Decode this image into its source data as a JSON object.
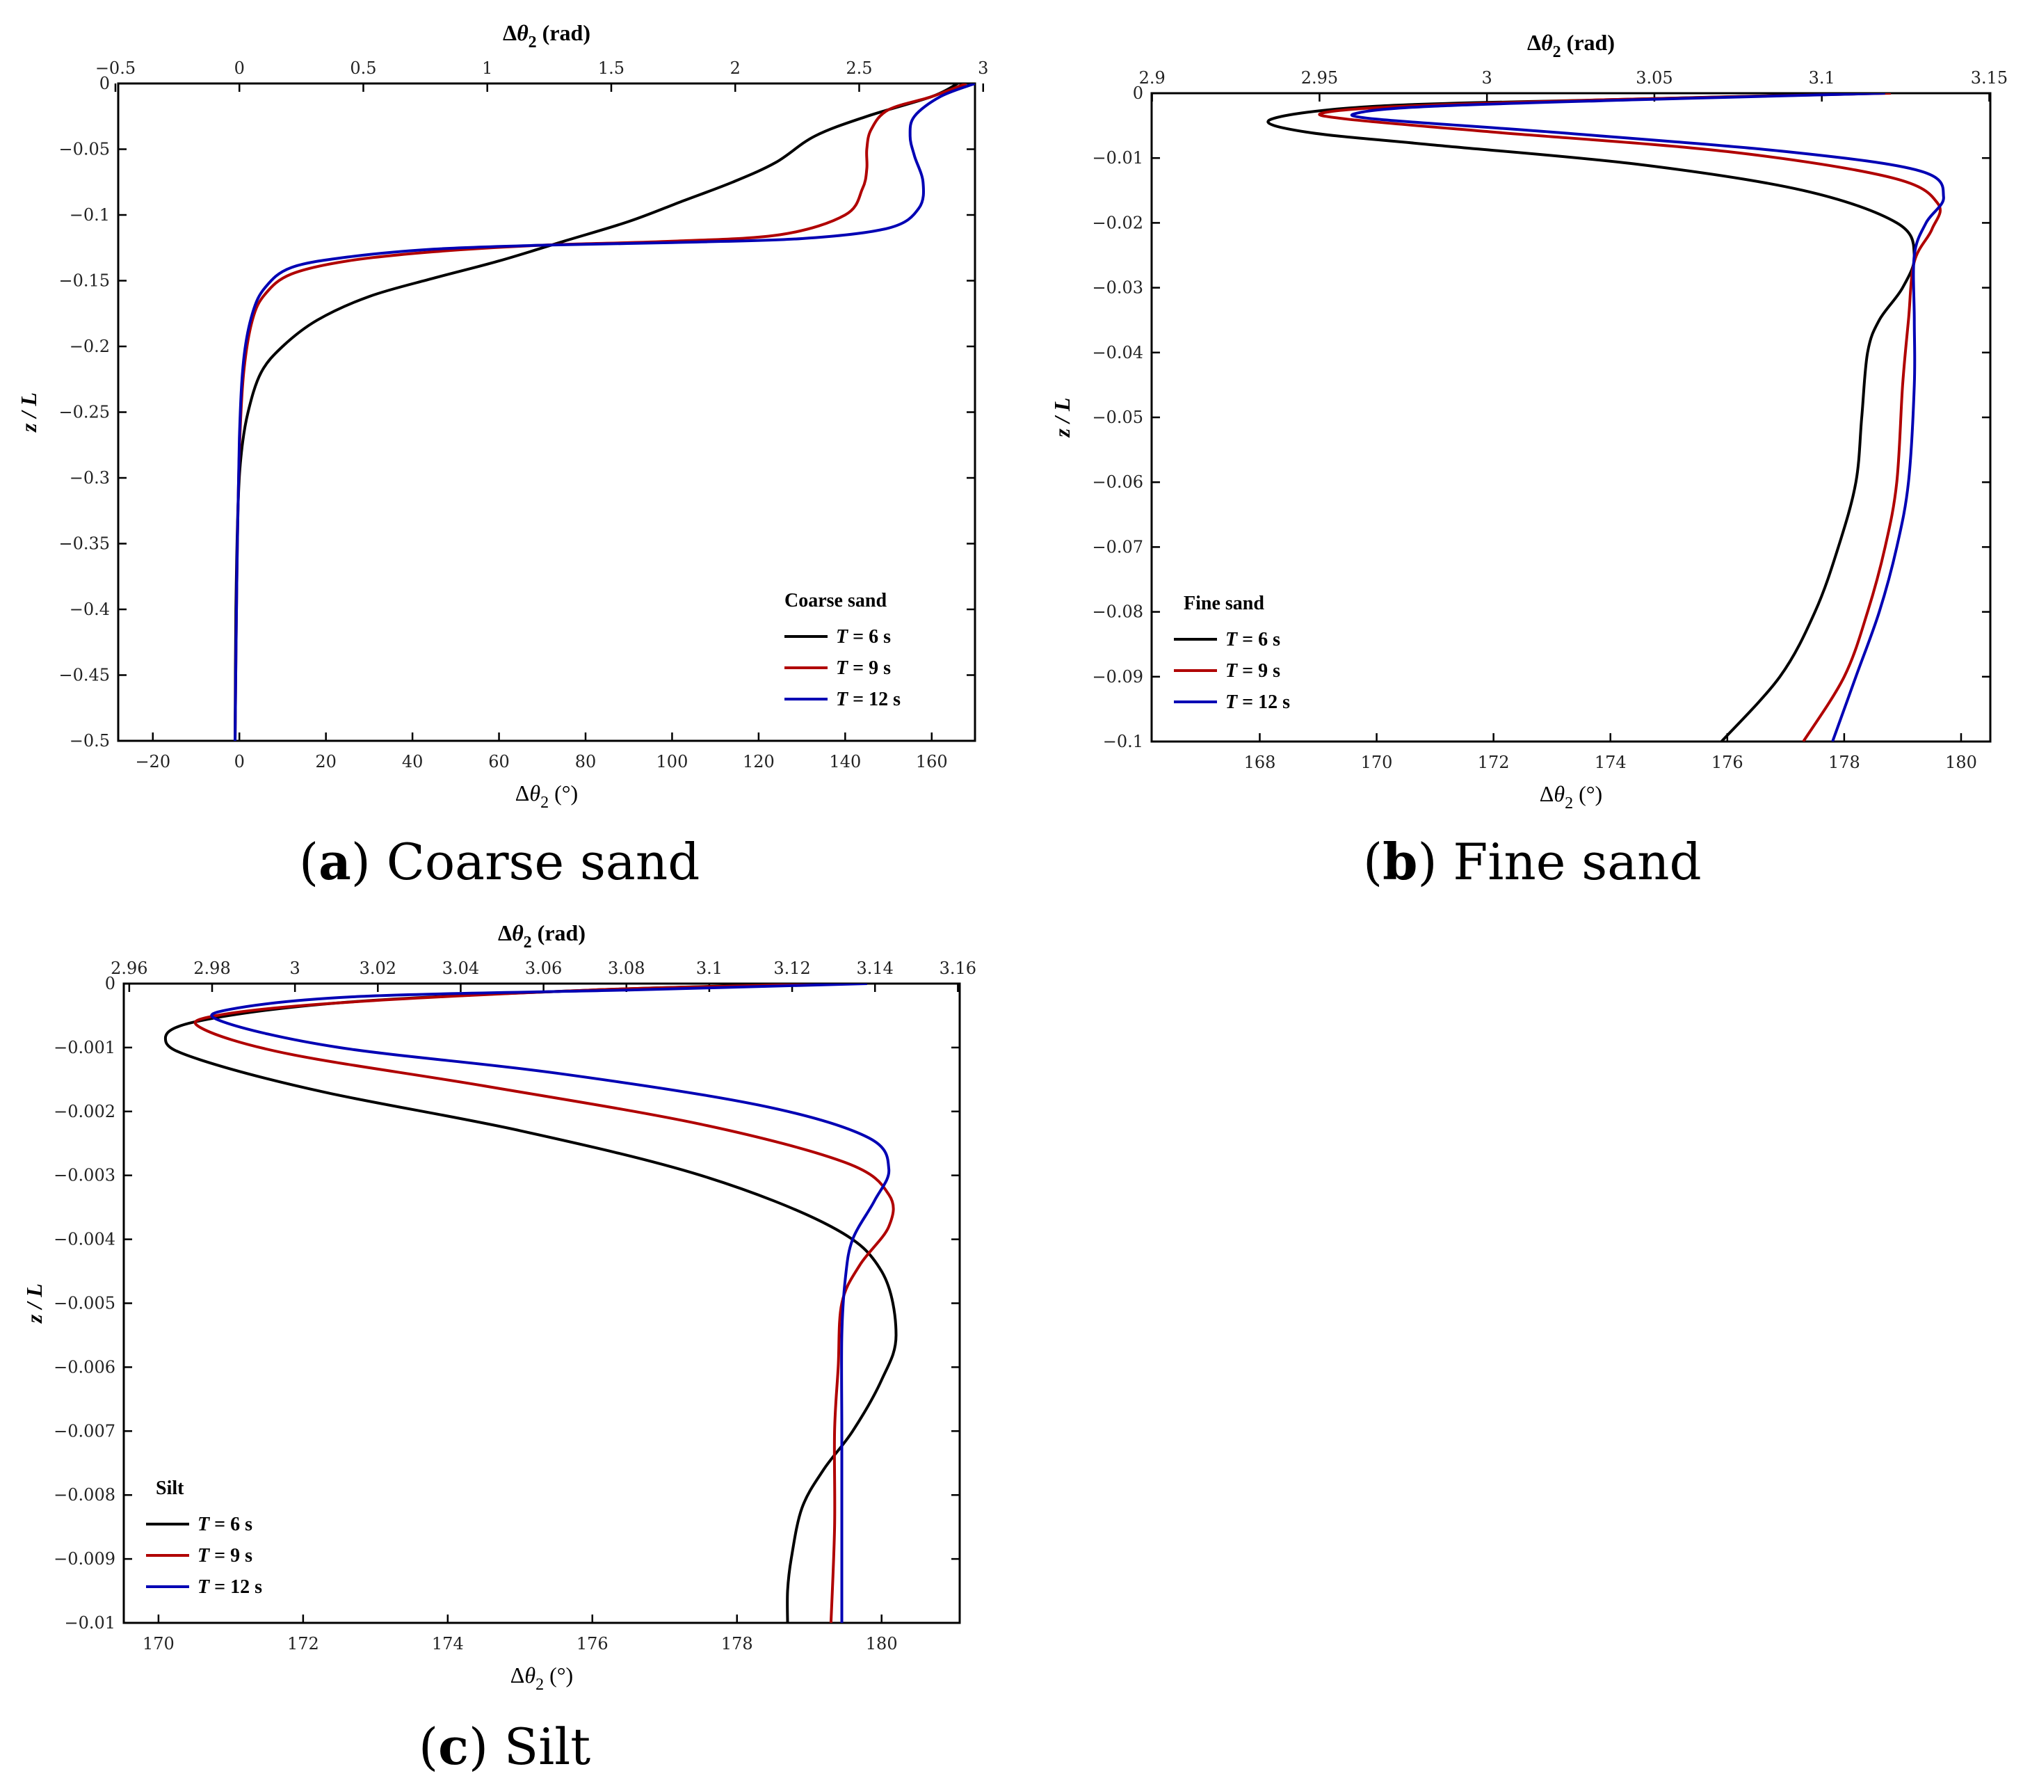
{
  "colors": {
    "T6": "#000000",
    "T9": "#b00000",
    "T12": "#0000b4"
  },
  "captions": [
    {
      "letter": "a",
      "text": "Coarse sand"
    },
    {
      "letter": "b",
      "text": "Fine sand"
    },
    {
      "letter": "c",
      "text": "Silt"
    }
  ],
  "chart_data": [
    {
      "type": "line",
      "panel": "a",
      "title": "Coarse sand",
      "xlabel": "Δθ2 (°)",
      "x2label": "Δθ2 (rad)",
      "ylabel": "z / L",
      "xlim": [
        -28,
        170
      ],
      "ylim": [
        -0.5,
        0
      ],
      "xticks": [
        -20,
        0,
        20,
        40,
        60,
        80,
        100,
        120,
        140,
        160
      ],
      "x2ticks": [
        -0.5,
        0,
        0.5,
        1,
        1.5,
        2,
        2.5,
        3
      ],
      "x2tick_labels": [
        "−0.5",
        "0",
        "0.5",
        "1",
        "1.5",
        "2",
        "2.5",
        "3"
      ],
      "yticks": [
        0,
        -0.05,
        -0.1,
        -0.15,
        -0.2,
        -0.25,
        -0.3,
        -0.35,
        -0.4,
        -0.45,
        -0.5
      ],
      "ytick_labels": [
        "0",
        "−0.05",
        "−0.1",
        "−0.15",
        "−0.2",
        "−0.25",
        "−0.3",
        "−0.35",
        "−0.4",
        "−0.45",
        "−0.5"
      ],
      "legend_title": "Coarse sand",
      "legend_position": "bottom-right",
      "series": [
        {
          "name": "T = 6 s",
          "key": "T6",
          "x": [
            166,
            160,
            145,
            133,
            124,
            114,
            102,
            90,
            75,
            60,
            45,
            30,
            18,
            10,
            5,
            2,
            0.5,
            -0.3,
            -0.8,
            -1
          ],
          "y": [
            0,
            -0.01,
            -0.025,
            -0.04,
            -0.06,
            -0.075,
            -0.09,
            -0.105,
            -0.12,
            -0.135,
            -0.148,
            -0.162,
            -0.18,
            -0.2,
            -0.22,
            -0.25,
            -0.28,
            -0.32,
            -0.4,
            -0.5
          ]
        },
        {
          "name": "T = 9 s",
          "key": "T9",
          "x": [
            168,
            160,
            150,
            146,
            145,
            145,
            144,
            140,
            125,
            100,
            70,
            45,
            25,
            12,
            6,
            3,
            1,
            0,
            -0.6,
            -1
          ],
          "y": [
            0,
            -0.01,
            -0.02,
            -0.035,
            -0.05,
            -0.065,
            -0.08,
            -0.1,
            -0.115,
            -0.12,
            -0.123,
            -0.128,
            -0.135,
            -0.145,
            -0.16,
            -0.18,
            -0.22,
            -0.28,
            -0.38,
            -0.5
          ]
        },
        {
          "name": "T = 12 s",
          "key": "T12",
          "x": [
            170,
            162,
            156,
            155,
            156,
            158,
            157,
            150,
            130,
            100,
            70,
            45,
            25,
            12,
            6,
            3,
            1,
            0,
            -0.6,
            -1
          ],
          "y": [
            0,
            -0.01,
            -0.025,
            -0.04,
            -0.055,
            -0.075,
            -0.095,
            -0.11,
            -0.118,
            -0.121,
            -0.123,
            -0.126,
            -0.132,
            -0.14,
            -0.155,
            -0.175,
            -0.21,
            -0.27,
            -0.38,
            -0.5
          ]
        }
      ]
    },
    {
      "type": "line",
      "panel": "b",
      "title": "Fine sand",
      "xlabel": "Δθ2 (°)",
      "x2label": "Δθ2 (rad)",
      "ylabel": "z / L",
      "xlim": [
        166.15,
        180.5
      ],
      "ylim": [
        -0.1,
        0
      ],
      "xticks": [
        168,
        170,
        172,
        174,
        176,
        178,
        180
      ],
      "x2ticks": [
        2.9,
        2.95,
        3,
        3.05,
        3.1,
        3.15
      ],
      "x2tick_labels": [
        "2.9",
        "2.95",
        "3",
        "3.05",
        "3.1",
        "3.15"
      ],
      "yticks": [
        0,
        -0.01,
        -0.02,
        -0.03,
        -0.04,
        -0.05,
        -0.06,
        -0.07,
        -0.08,
        -0.09,
        -0.1
      ],
      "ytick_labels": [
        "0",
        "−0.01",
        "−0.02",
        "−0.03",
        "−0.04",
        "−0.05",
        "−0.06",
        "−0.07",
        "−0.08",
        "−0.09",
        "−0.1"
      ],
      "legend_title": "Fine sand",
      "legend_position": "bottom-left",
      "series": [
        {
          "name": "T = 6 s",
          "key": "T6",
          "x": [
            178.5,
            174,
            170,
            168.2,
            168.8,
            171,
            174.5,
            177.3,
            178.9,
            179.2,
            179,
            178.6,
            178.4,
            178.3,
            178.2,
            177.9,
            177.5,
            176.9,
            175.9
          ],
          "y": [
            0,
            -0.001,
            -0.002,
            -0.004,
            -0.006,
            -0.008,
            -0.011,
            -0.015,
            -0.02,
            -0.025,
            -0.03,
            -0.035,
            -0.04,
            -0.05,
            -0.06,
            -0.07,
            -0.08,
            -0.09,
            -0.1
          ]
        },
        {
          "name": "T = 9 s",
          "key": "T9",
          "x": [
            178.8,
            174,
            170.5,
            169.1,
            169.5,
            172,
            176,
            178.8,
            179.6,
            179.5,
            179.2,
            179.1,
            179,
            178.9,
            178.7,
            178.4,
            178,
            177.3
          ],
          "y": [
            0,
            -0.001,
            -0.002,
            -0.003,
            -0.004,
            -0.006,
            -0.009,
            -0.013,
            -0.017,
            -0.021,
            -0.026,
            -0.035,
            -0.045,
            -0.06,
            -0.07,
            -0.08,
            -0.09,
            -0.1
          ]
        },
        {
          "name": "T = 12 s",
          "key": "T12",
          "x": [
            178.7,
            174.5,
            171,
            169.7,
            170,
            173,
            177,
            179.3,
            179.7,
            179.4,
            179.2,
            179.2,
            179.2,
            179.1,
            178.9,
            178.6,
            178.2,
            177.8
          ],
          "y": [
            0,
            -0.001,
            -0.002,
            -0.003,
            -0.004,
            -0.006,
            -0.009,
            -0.012,
            -0.016,
            -0.02,
            -0.025,
            -0.035,
            -0.045,
            -0.06,
            -0.07,
            -0.08,
            -0.09,
            -0.1
          ]
        }
      ]
    },
    {
      "type": "line",
      "panel": "c",
      "title": "Silt",
      "xlabel": "Δθ2 (°)",
      "x2label": "Δθ2 (rad)",
      "ylabel": "z / L",
      "xlim": [
        169.52,
        181.08
      ],
      "ylim": [
        -0.01,
        0
      ],
      "xticks": [
        170,
        172,
        174,
        176,
        178,
        180
      ],
      "x2ticks": [
        2.96,
        2.98,
        3,
        3.02,
        3.04,
        3.06,
        3.08,
        3.1,
        3.12,
        3.14,
        3.16
      ],
      "x2tick_labels": [
        "2.96",
        "2.98",
        "3",
        "3.02",
        "3.04",
        "3.06",
        "3.08",
        "3.1",
        "3.12",
        "3.14",
        "3.16"
      ],
      "yticks": [
        0,
        -0.001,
        -0.002,
        -0.003,
        -0.004,
        -0.005,
        -0.006,
        -0.007,
        -0.008,
        -0.009,
        -0.01
      ],
      "ytick_labels": [
        "0",
        "−0.001",
        "−0.002",
        "−0.003",
        "−0.004",
        "−0.005",
        "−0.006",
        "−0.007",
        "−0.008",
        "−0.009",
        "−0.01"
      ],
      "legend_title": "Silt",
      "legend_position": "bottom-left",
      "series": [
        {
          "name": "T = 6 s",
          "key": "T6",
          "x": [
            179.2,
            176,
            172.5,
            170.5,
            170.1,
            170.6,
            172.3,
            175,
            177.5,
            179.3,
            180,
            180.2,
            180,
            179.6,
            179.2,
            178.9,
            178.75,
            178.7,
            178.7
          ],
          "y": [
            0,
            -0.0001,
            -0.0003,
            -0.0006,
            -0.0009,
            -0.0012,
            -0.0017,
            -0.0023,
            -0.003,
            -0.0038,
            -0.0045,
            -0.0055,
            -0.0062,
            -0.007,
            -0.0076,
            -0.0082,
            -0.009,
            -0.0095,
            -0.01
          ]
        },
        {
          "name": "T = 9 s",
          "key": "T9",
          "x": [
            179.5,
            176,
            172.5,
            170.8,
            170.6,
            171.8,
            174.5,
            177.5,
            179.5,
            180.1,
            180.1,
            179.7,
            179.45,
            179.4,
            179.35,
            179.35,
            179.3
          ],
          "y": [
            0,
            -0.0001,
            -0.0003,
            -0.0005,
            -0.0007,
            -0.0011,
            -0.0016,
            -0.0022,
            -0.0028,
            -0.0033,
            -0.0038,
            -0.0044,
            -0.005,
            -0.006,
            -0.007,
            -0.0085,
            -0.01
          ]
        },
        {
          "name": "T = 12 s",
          "key": "T12",
          "x": [
            179.8,
            176.5,
            172.8,
            171,
            170.9,
            172.5,
            175.5,
            178.3,
            179.8,
            180.1,
            179.9,
            179.6,
            179.5,
            179.45,
            179.45,
            179.45,
            179.45
          ],
          "y": [
            0,
            -0.0001,
            -0.0002,
            -0.0004,
            -0.0006,
            -0.001,
            -0.0014,
            -0.0019,
            -0.0024,
            -0.0029,
            -0.0034,
            -0.004,
            -0.0046,
            -0.0055,
            -0.007,
            -0.0085,
            -0.01
          ]
        }
      ]
    }
  ]
}
